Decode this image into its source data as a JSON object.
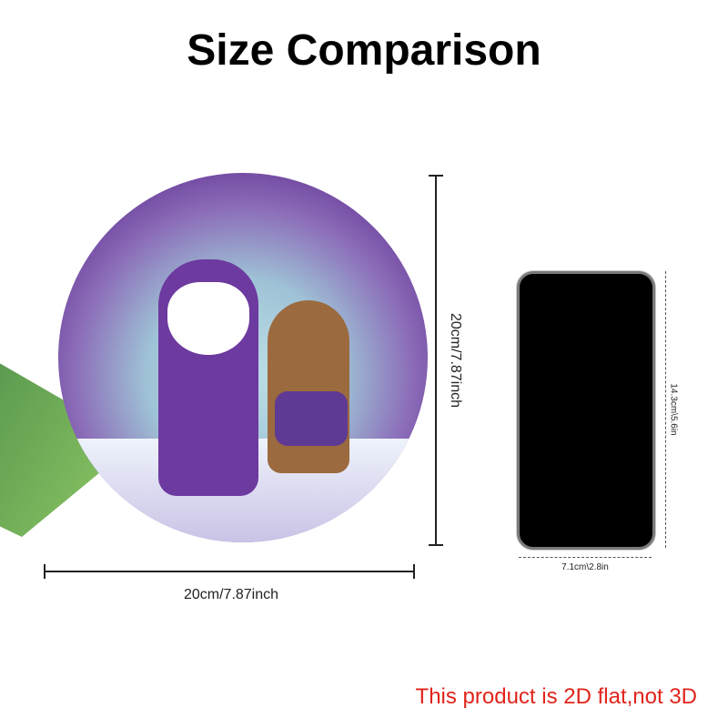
{
  "title": "Size Comparison",
  "product": {
    "width_label": "20cm/7.87inch",
    "height_label": "20cm/7.87inch"
  },
  "phone": {
    "width_label": "7.1cm\\2.8in",
    "height_label": "14.3cm\\5.6in"
  },
  "note": "This product is 2D flat,not 3D",
  "colors": {
    "note": "#e0241b",
    "sign_purple": "#6a3f9a"
  }
}
